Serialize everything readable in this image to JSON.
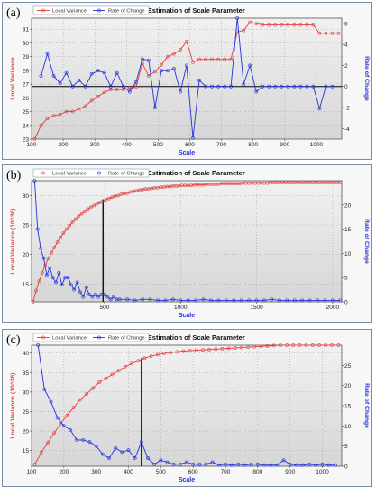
{
  "chart_data": [
    {
      "panel_label": "(a)",
      "type": "line",
      "title": "ESP - Estimation of Scale Parameter",
      "xlabel": "Scale",
      "ylabel": "Local Variance",
      "y2label": "Rate of Change",
      "legend": [
        "Local Variance",
        "Rate of Change"
      ],
      "legend_position": "top-left",
      "colors": {
        "Local Variance": "#e04040",
        "Rate of Change": "#2233dd"
      },
      "grid": true,
      "xlim": [
        100,
        1080
      ],
      "ylim": [
        23,
        31.8
      ],
      "y2lim": [
        -5,
        6.5
      ],
      "xticks": [
        100,
        200,
        300,
        400,
        500,
        600,
        700,
        800,
        900,
        1000
      ],
      "yticks": [
        23,
        24,
        25,
        26,
        27,
        28,
        29,
        30,
        31
      ],
      "y2ticks": [
        -4,
        -2,
        0,
        2,
        4,
        6
      ],
      "hlines_y2": [
        0
      ],
      "vlines": [],
      "series": [
        {
          "name": "Local Variance",
          "axis": "left",
          "x": [
            110,
            130,
            150,
            170,
            190,
            210,
            230,
            250,
            270,
            290,
            310,
            330,
            350,
            370,
            390,
            410,
            430,
            450,
            470,
            490,
            510,
            530,
            550,
            570,
            590,
            610,
            630,
            650,
            670,
            690,
            710,
            730,
            750,
            770,
            790,
            810,
            830,
            850,
            870,
            890,
            910,
            930,
            950,
            970,
            990,
            1010,
            1030,
            1050,
            1070
          ],
          "values": [
            23.0,
            24.0,
            24.5,
            24.7,
            24.8,
            25.0,
            25.0,
            25.2,
            25.4,
            25.8,
            26.1,
            26.4,
            26.6,
            26.6,
            26.6,
            26.7,
            26.8,
            28.5,
            27.6,
            27.9,
            28.4,
            29.0,
            29.2,
            29.5,
            30.1,
            28.6,
            28.8,
            28.8,
            28.8,
            28.8,
            28.8,
            28.8,
            30.8,
            30.9,
            31.5,
            31.4,
            31.3,
            31.3,
            31.3,
            31.3,
            31.3,
            31.3,
            31.3,
            31.3,
            31.3,
            30.7,
            30.7,
            30.7,
            30.7
          ]
        },
        {
          "name": "Rate of Change",
          "axis": "right",
          "x": [
            130,
            150,
            170,
            190,
            210,
            230,
            250,
            270,
            290,
            310,
            330,
            350,
            370,
            390,
            410,
            430,
            450,
            470,
            490,
            510,
            530,
            550,
            570,
            590,
            610,
            630,
            650,
            670,
            690,
            710,
            730,
            750,
            770,
            790,
            810,
            830,
            850,
            870,
            890,
            910,
            930,
            950,
            970,
            990,
            1010,
            1030,
            1050
          ],
          "values": [
            1.0,
            3.1,
            1.0,
            0.3,
            1.3,
            0.0,
            0.6,
            0.0,
            1.2,
            1.5,
            1.3,
            0.0,
            1.3,
            0.0,
            -0.5,
            0.4,
            2.6,
            2.5,
            -2.0,
            1.5,
            1.5,
            1.7,
            -0.5,
            2.0,
            -4.9,
            0.6,
            0.0,
            0.0,
            0.0,
            0.0,
            0.0,
            7.0,
            0.2,
            2.0,
            -0.5,
            0.0,
            0.0,
            0.0,
            0.0,
            0.0,
            0.0,
            0.0,
            0.0,
            0.0,
            -2.1,
            0.0,
            0.0
          ]
        }
      ]
    },
    {
      "panel_label": "(b)",
      "type": "line",
      "title": "ESP - Estimation of Scale Parameter",
      "xlabel": "Scale",
      "ylabel": "Local Variance (10^36)",
      "y2label": "Rate of Change",
      "legend": [
        "Local Variance",
        "Rate of Change"
      ],
      "legend_position": "top-left",
      "colors": {
        "Local Variance": "#e04040",
        "Rate of Change": "#2233dd"
      },
      "grid": true,
      "xlim": [
        20,
        2060
      ],
      "ylim": [
        12,
        32.5
      ],
      "y2lim": [
        0,
        25
      ],
      "xticks": [
        500,
        1000,
        1500,
        2000
      ],
      "yticks": [
        15,
        20,
        25,
        30
      ],
      "y2ticks": [
        0,
        5,
        10,
        15,
        20
      ],
      "hlines_y2": [],
      "vlines": [
        {
          "x": 490,
          "y": 29.3
        }
      ],
      "series": [
        {
          "name": "Local Variance",
          "axis": "left",
          "x": [
            30,
            50,
            70,
            90,
            110,
            130,
            150,
            170,
            190,
            210,
            230,
            250,
            270,
            290,
            310,
            330,
            350,
            370,
            390,
            410,
            430,
            450,
            470,
            490,
            510,
            530,
            550,
            570,
            590,
            610,
            630,
            650,
            670,
            690,
            710,
            730,
            750,
            770,
            790,
            810,
            830,
            850,
            870,
            890,
            910,
            930,
            950,
            970,
            990,
            1010,
            1030,
            1050,
            1070,
            1090,
            1110,
            1130,
            1150,
            1170,
            1190,
            1210,
            1230,
            1250,
            1270,
            1290,
            1310,
            1330,
            1350,
            1370,
            1390,
            1410,
            1430,
            1450,
            1470,
            1490,
            1510,
            1530,
            1550,
            1570,
            1590,
            1610,
            1630,
            1650,
            1670,
            1690,
            1710,
            1730,
            1750,
            1770,
            1790,
            1810,
            1830,
            1850,
            1870,
            1890,
            1910,
            1930,
            1950,
            1970,
            1990,
            2010,
            2030,
            2050
          ],
          "values": [
            12.0,
            13.9,
            15.5,
            16.9,
            18.2,
            19.3,
            20.3,
            21.2,
            22.1,
            22.9,
            23.6,
            24.3,
            24.9,
            25.5,
            26.0,
            26.5,
            26.9,
            27.3,
            27.7,
            28.0,
            28.3,
            28.6,
            28.8,
            29.1,
            29.3,
            29.5,
            29.7,
            29.9,
            30.0,
            30.2,
            30.3,
            30.4,
            30.6,
            30.7,
            30.8,
            30.9,
            31.0,
            31.1,
            31.1,
            31.2,
            31.3,
            31.3,
            31.4,
            31.4,
            31.5,
            31.5,
            31.6,
            31.6,
            31.6,
            31.7,
            31.7,
            31.7,
            31.7,
            31.8,
            31.8,
            31.8,
            31.8,
            31.9,
            31.9,
            31.9,
            31.9,
            31.9,
            32.0,
            32.0,
            32.0,
            32.0,
            32.0,
            32.0,
            32.0,
            32.1,
            32.1,
            32.1,
            32.1,
            32.1,
            32.1,
            32.1,
            32.1,
            32.1,
            32.2,
            32.2,
            32.2,
            32.2,
            32.2,
            32.2,
            32.2,
            32.2,
            32.2,
            32.2,
            32.2,
            32.2,
            32.2,
            32.2,
            32.2,
            32.2,
            32.2,
            32.2,
            32.2,
            32.2,
            32.2,
            32.2,
            32.2,
            32.2
          ]
        },
        {
          "name": "Rate of Change",
          "axis": "right",
          "x": [
            40,
            60,
            80,
            100,
            120,
            140,
            160,
            180,
            200,
            220,
            240,
            260,
            280,
            300,
            320,
            340,
            360,
            380,
            400,
            420,
            440,
            460,
            480,
            500,
            520,
            540,
            560,
            580,
            600,
            650,
            700,
            750,
            800,
            850,
            900,
            950,
            1000,
            1050,
            1100,
            1150,
            1200,
            1250,
            1300,
            1350,
            1400,
            1450,
            1500,
            1550,
            1600,
            1650,
            1700,
            1750,
            1800,
            1850,
            1900,
            1950,
            2000,
            2050
          ],
          "values": [
            25.0,
            15.0,
            11.0,
            9.0,
            5.5,
            7.0,
            5.0,
            4.0,
            6.0,
            3.5,
            5.0,
            5.0,
            3.5,
            2.5,
            4.0,
            2.0,
            1.0,
            3.0,
            1.5,
            1.0,
            1.5,
            1.0,
            1.5,
            1.5,
            1.0,
            0.5,
            1.0,
            0.5,
            0.5,
            0.5,
            0.3,
            0.5,
            0.5,
            0.3,
            0.3,
            0.5,
            0.3,
            0.3,
            0.3,
            0.5,
            0.3,
            0.3,
            0.3,
            0.3,
            0.3,
            0.3,
            0.3,
            0.3,
            0.5,
            0.3,
            0.3,
            0.3,
            0.3,
            0.3,
            0.3,
            0.3,
            0.3,
            0.3
          ]
        }
      ]
    },
    {
      "panel_label": "(c)",
      "type": "line",
      "title": "ESP - Estimation of Scale Parameter",
      "xlabel": "Scale",
      "ylabel": "Local Variance (10^36)",
      "y2label": "Rate of Change",
      "legend": [
        "Local Variance",
        "Rate of Change"
      ],
      "legend_position": "top-left",
      "colors": {
        "Local Variance": "#e04040",
        "Rate of Change": "#2233dd"
      },
      "grid": true,
      "xlim": [
        100,
        1060
      ],
      "ylim": [
        11,
        42
      ],
      "y2lim": [
        0,
        30
      ],
      "xticks": [
        100,
        200,
        300,
        400,
        500,
        600,
        700,
        800,
        900,
        1000
      ],
      "yticks": [
        15,
        20,
        25,
        30,
        35,
        40
      ],
      "y2ticks": [
        0,
        5,
        10,
        15,
        20,
        25
      ],
      "hlines_y2": [],
      "vlines": [
        {
          "x": 440,
          "y": 38.7
        }
      ],
      "series": [
        {
          "name": "Local Variance",
          "axis": "left",
          "x": [
            110,
            130,
            150,
            170,
            190,
            210,
            230,
            250,
            270,
            290,
            310,
            330,
            350,
            370,
            390,
            410,
            430,
            450,
            470,
            490,
            510,
            530,
            550,
            570,
            590,
            610,
            630,
            650,
            670,
            690,
            710,
            730,
            750,
            770,
            790,
            810,
            830,
            850,
            870,
            890,
            910,
            930,
            950,
            970,
            990,
            1010,
            1030,
            1050
          ],
          "values": [
            11.5,
            14.5,
            17.0,
            19.5,
            22.0,
            24.0,
            26.0,
            28.0,
            29.5,
            31.0,
            32.5,
            33.5,
            34.5,
            35.5,
            36.5,
            37.3,
            38.0,
            38.7,
            39.2,
            39.6,
            39.9,
            40.1,
            40.3,
            40.5,
            40.6,
            40.7,
            40.8,
            40.9,
            41.0,
            41.1,
            41.2,
            41.3,
            41.4,
            41.5,
            41.6,
            41.7,
            41.8,
            41.9,
            42.0,
            42.1,
            42.2,
            42.3,
            42.4,
            42.5,
            42.6,
            42.7,
            42.8,
            42.9
          ]
        },
        {
          "name": "Rate of Change",
          "axis": "right",
          "x": [
            120,
            140,
            160,
            180,
            200,
            220,
            240,
            260,
            280,
            300,
            320,
            340,
            360,
            380,
            400,
            420,
            440,
            460,
            480,
            500,
            520,
            540,
            560,
            580,
            600,
            620,
            640,
            660,
            680,
            700,
            720,
            740,
            760,
            780,
            800,
            820,
            840,
            860,
            880,
            900,
            920,
            940,
            960,
            980,
            1000,
            1020,
            1040
          ],
          "values": [
            30.0,
            19.0,
            16.0,
            12.0,
            10.0,
            9.0,
            6.5,
            6.5,
            6.0,
            5.0,
            3.0,
            2.0,
            4.5,
            3.5,
            4.0,
            2.0,
            6.0,
            2.0,
            0.5,
            1.5,
            1.0,
            0.5,
            0.5,
            1.0,
            0.5,
            0.5,
            0.5,
            1.0,
            0.3,
            0.5,
            0.3,
            0.5,
            0.3,
            0.5,
            0.5,
            0.3,
            0.3,
            0.3,
            1.5,
            0.5,
            0.3,
            0.3,
            0.5,
            0.3,
            0.5,
            0.3,
            0.3
          ]
        }
      ]
    }
  ]
}
